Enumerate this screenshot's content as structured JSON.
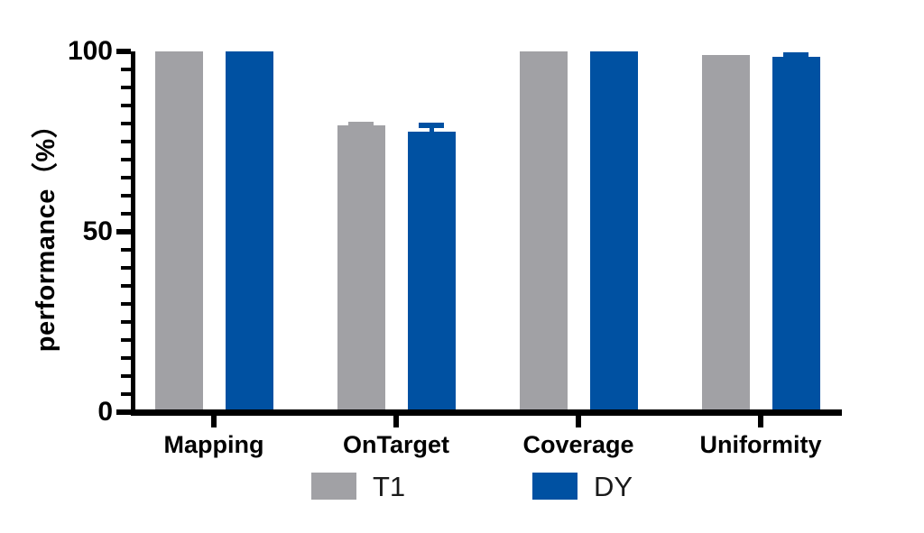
{
  "figure": {
    "background": "#ffffff",
    "axis_color": "#000000"
  },
  "chart_data": {
    "type": "bar",
    "title": "",
    "xlabel": "",
    "ylabel": "performance（%）",
    "categories": [
      "Mapping",
      "OnTarget",
      "Coverage",
      "Uniformity"
    ],
    "series": [
      {
        "name": "T1",
        "color": "#a1a1a5",
        "values": [
          99.9,
          79.5,
          100,
          98.9
        ],
        "errors": [
          0,
          0.4,
          0,
          0
        ]
      },
      {
        "name": "DY",
        "color": "#0051a2",
        "values": [
          99.9,
          77.8,
          100,
          98.5
        ],
        "errors": [
          0,
          2.0,
          0,
          0.8
        ]
      }
    ],
    "ylim": [
      0,
      100
    ],
    "yticks": [
      0,
      50,
      100
    ],
    "minor_tick_step": 5,
    "grid": false,
    "error_bars": true,
    "legend_position": "bottom"
  }
}
